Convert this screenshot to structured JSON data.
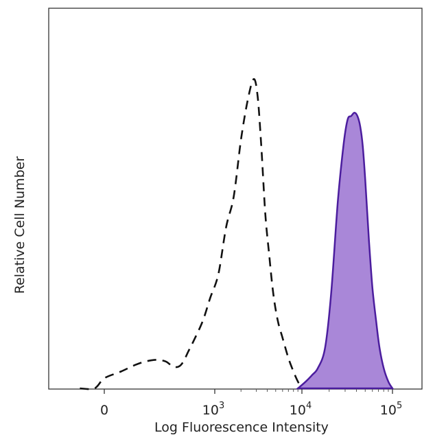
{
  "chart_data": {
    "type": "area",
    "title": "",
    "xlabel": "Log Fluorescence Intensity",
    "ylabel": "Relative Cell Number",
    "x_scale": "biexponential",
    "xlim": [
      -400,
      200000
    ],
    "ylim": [
      0,
      100
    ],
    "grid": false,
    "legend": "none",
    "x_ticks": [
      {
        "value": 0,
        "base": "0",
        "exp": ""
      },
      {
        "value": 1000,
        "base": "10",
        "exp": "3"
      },
      {
        "value": 10000,
        "base": "10",
        "exp": "4"
      },
      {
        "value": 100000,
        "base": "10",
        "exp": "5"
      }
    ],
    "series": [
      {
        "style": "dashed",
        "color": "#111111",
        "fill": "none",
        "x": [
          -250,
          -100,
          0,
          60,
          120,
          170,
          230,
          300,
          360,
          420,
          470,
          530,
          600,
          750,
          900,
          1100,
          1350,
          1650,
          2000,
          2400,
          2800,
          3100,
          3400,
          3800,
          4200,
          4700,
          5300,
          6000,
          7000,
          8000,
          9000,
          10000
        ],
        "y": [
          0,
          0,
          3,
          5,
          7,
          8,
          8.5,
          8,
          6.5,
          6.5,
          8,
          11,
          14,
          20,
          27,
          34,
          48,
          57,
          74,
          86,
          92,
          87,
          73,
          52,
          40,
          28,
          20,
          15,
          9,
          5,
          2,
          0
        ]
      },
      {
        "style": "solid",
        "color": "#4b1d9e",
        "fill": "#a987d8",
        "x": [
          9000,
          11000,
          13000,
          15000,
          18000,
          21000,
          25000,
          29000,
          32000,
          35000,
          38000,
          41000,
          44000,
          47000,
          50000,
          55000,
          60000,
          66000,
          72000,
          80000,
          90000,
          100000
        ],
        "y": [
          0,
          2,
          4,
          6,
          12,
          28,
          56,
          73,
          80,
          81,
          82,
          81,
          78,
          72,
          62,
          44,
          30,
          20,
          12,
          6,
          2,
          0
        ]
      }
    ]
  }
}
